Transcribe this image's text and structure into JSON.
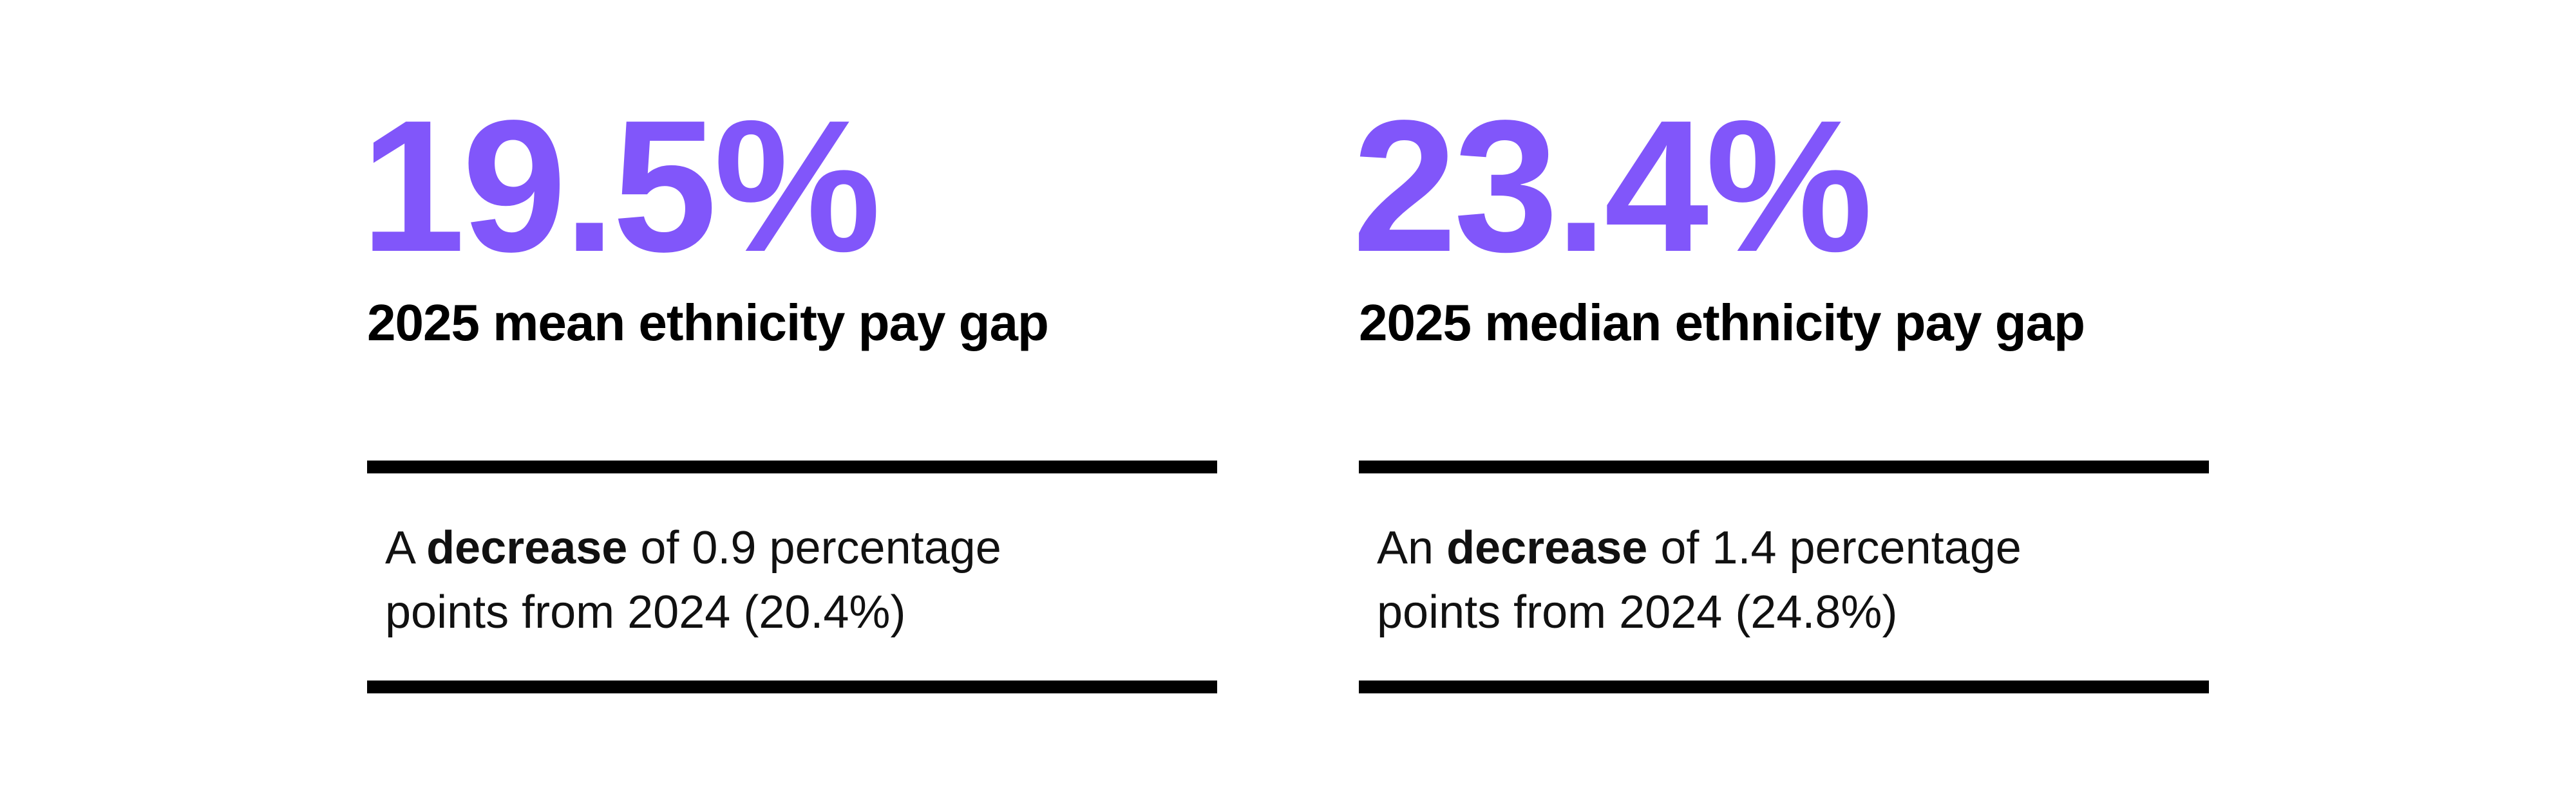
{
  "colors": {
    "accent": "#8156FA",
    "heading_text": "#000000",
    "note_text": "#111111",
    "divider": "#000000",
    "background": "#FFFFFF"
  },
  "stats": [
    {
      "value": "19.5%",
      "label": "2025 mean ethnicity pay gap",
      "note_prefix": "A ",
      "note_bold": "decrease",
      "note_suffix": " of 0.9 percentage points from 2024 (20.4%)"
    },
    {
      "value": "23.4%",
      "label": "2025 median ethnicity pay gap",
      "note_prefix": "An ",
      "note_bold": "decrease",
      "note_suffix": " of 1.4 percentage points from 2024 (24.8%)"
    }
  ],
  "chart_data": {
    "type": "table",
    "metrics": [
      {
        "label": "2025 mean ethnicity pay gap",
        "value_pct": 19.5,
        "direction": "decrease",
        "change_pp": -0.9,
        "prior_year_label": "2024",
        "prior_value_pct": 20.4
      },
      {
        "label": "2025 median ethnicity pay gap",
        "value_pct": 23.4,
        "direction": "decrease",
        "change_pp": -1.4,
        "prior_year_label": "2024",
        "prior_value_pct": 24.8
      }
    ]
  }
}
